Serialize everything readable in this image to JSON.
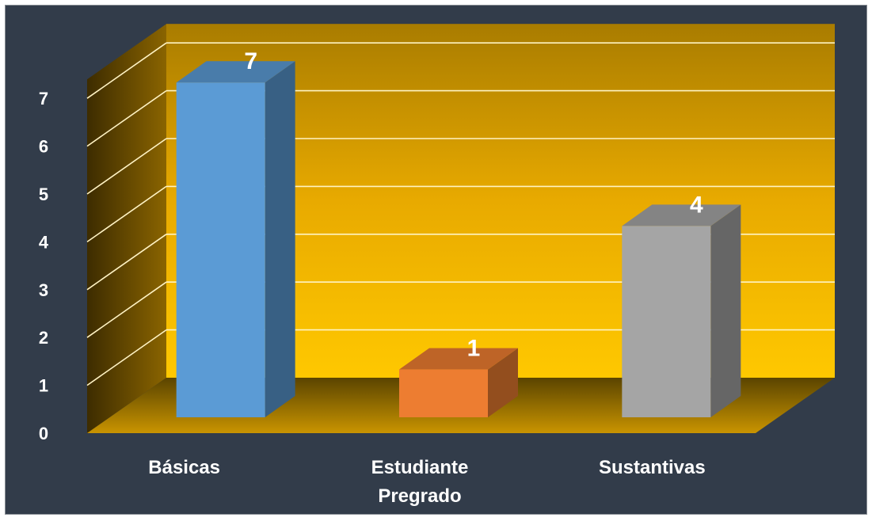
{
  "chart_data": {
    "type": "bar",
    "title": "",
    "xlabel": "",
    "ylabel": "",
    "categories": [
      "Básicas",
      "Estudiante Pregrado",
      "Sustantivas"
    ],
    "category_lines": [
      [
        "Básicas"
      ],
      [
        "Estudiante",
        "Pregrado"
      ],
      [
        "Sustantivas"
      ]
    ],
    "values": [
      7,
      1,
      4
    ],
    "data_labels": [
      "7",
      "1",
      "4"
    ],
    "colors": [
      "#5b9bd5",
      "#ed7d31",
      "#a5a5a5"
    ],
    "ylim": [
      0,
      7
    ],
    "yticks": [
      "0",
      "1",
      "2",
      "3",
      "4",
      "5",
      "6",
      "7"
    ],
    "grid": true,
    "three_d": true,
    "wall_color": "#f5b400",
    "background": "#323c4a"
  }
}
